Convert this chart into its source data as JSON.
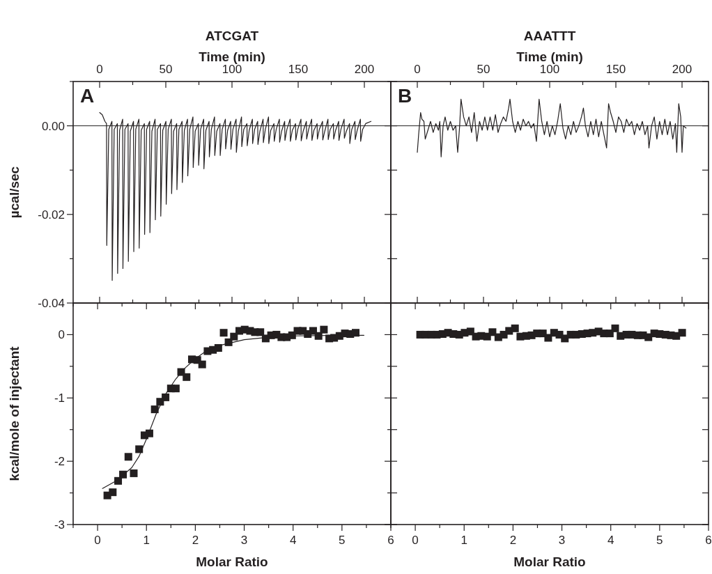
{
  "chart_data": [
    {
      "type": "line",
      "title": "ATCGAT",
      "xlabel": "Time (min)",
      "ylabel": "µcal/sec",
      "annotations": [
        "A"
      ],
      "xlim": [
        -20,
        220
      ],
      "xticks": [
        0,
        {
          "value": 25,
          "label": null
        },
        50,
        {
          "value": 75,
          "label": null
        },
        100,
        {
          "value": 125,
          "label": null
        },
        150,
        {
          "value": 175,
          "label": null
        },
        200
      ],
      "ylim": [
        -0.04,
        0.01
      ],
      "yticks": [
        {
          "value": -0.04,
          "label": "-0.04"
        },
        {
          "value": -0.03,
          "label": null
        },
        {
          "value": -0.02,
          "label": "-0.02"
        },
        {
          "value": -0.01,
          "label": null
        },
        {
          "value": 0,
          "label": "0.00"
        },
        {
          "value": 0.01,
          "label": null
        }
      ],
      "ref_lines": [
        {
          "axis": "y",
          "value": 0,
          "color": "#231f20"
        }
      ],
      "series": [
        {
          "color": "#231f20",
          "x": [
            0,
            2,
            4,
            5.2,
            5.4,
            6.9,
            9.3,
            9.5,
            11.0,
            13.4,
            13.6,
            15.1,
            17.4,
            17.6,
            19.1,
            21.5,
            21.7,
            23.2,
            25.6,
            25.8,
            27.3,
            29.7,
            29.9,
            31.4,
            33.8,
            34.0,
            35.5,
            37.8,
            38.0,
            39.5,
            41.9,
            42.1,
            43.6,
            46.0,
            46.2,
            47.7,
            50.1,
            50.3,
            51.8,
            54.2,
            54.4,
            55.9,
            58.2,
            58.4,
            59.9,
            62.3,
            62.5,
            64.0,
            66.4,
            66.6,
            68.1,
            70.5,
            70.7,
            72.2,
            74.6,
            74.8,
            76.3,
            78.6,
            78.8,
            80.3,
            82.7,
            82.9,
            84.4,
            86.8,
            87.0,
            88.5,
            90.9,
            91.1,
            92.6,
            95.0,
            95.2,
            96.7,
            99.0,
            99.2,
            100.7,
            103.1,
            103.3,
            104.8,
            107.2,
            107.4,
            108.9,
            111.3,
            111.5,
            113.0,
            115.4,
            115.6,
            117.1,
            119.4,
            119.6,
            121.1,
            123.5,
            123.7,
            125.2,
            127.6,
            127.8,
            129.3,
            131.7,
            131.9,
            133.4,
            135.8,
            136.0,
            137.5,
            139.8,
            140.0,
            141.5,
            143.9,
            144.1,
            145.6,
            148.0,
            148.2,
            149.7,
            152.1,
            152.3,
            153.8,
            156.2,
            156.4,
            157.9,
            160.2,
            160.4,
            161.9,
            164.3,
            164.5,
            166.0,
            168.4,
            168.6,
            170.1,
            172.5,
            172.7,
            174.2,
            176.6,
            176.8,
            178.3,
            180.6,
            180.8,
            182.3,
            184.7,
            184.9,
            186.4,
            188.8,
            189.0,
            190.5,
            192.9,
            193.1,
            194.6,
            197.0,
            197.2,
            198.7,
            201,
            205
          ],
          "values": [
            0.003,
            0.0025,
            0.001,
            0.0005,
            -0.027,
            -0.0008,
            0.001,
            -0.0349,
            -0.0008,
            0.0005,
            -0.0333,
            -0.001,
            0.0015,
            -0.0322,
            -0.0008,
            0.0005,
            -0.0306,
            -0.0012,
            0.001,
            -0.0284,
            -0.0008,
            0.0015,
            -0.0276,
            -0.001,
            0.0005,
            -0.0245,
            -0.0008,
            0.001,
            -0.0241,
            -0.0012,
            0.0015,
            -0.0212,
            -0.0008,
            0.0005,
            -0.0204,
            -0.001,
            0.001,
            -0.0177,
            -0.0008,
            0.0015,
            -0.0153,
            -0.0012,
            0.0005,
            -0.0144,
            -0.0008,
            0.001,
            -0.0128,
            -0.001,
            0.0015,
            -0.0113,
            -0.0008,
            0.002,
            -0.0094,
            -0.0012,
            0.0005,
            -0.0089,
            -0.0008,
            0.0015,
            -0.0097,
            -0.001,
            0.001,
            -0.007,
            -0.0008,
            0.002,
            -0.0067,
            -0.0012,
            0.0005,
            -0.0067,
            -0.0008,
            0.0015,
            -0.0052,
            -0.001,
            0.001,
            -0.0053,
            -0.0008,
            0.0015,
            -0.006,
            -0.0012,
            0.002,
            -0.0047,
            -0.0008,
            0.0005,
            -0.0045,
            -0.001,
            0.0015,
            -0.004,
            -0.0008,
            0.001,
            -0.0042,
            -0.0012,
            0.0015,
            -0.0038,
            -0.0008,
            0.002,
            -0.004,
            -0.001,
            0.0005,
            -0.0035,
            -0.0008,
            0.0015,
            -0.0037,
            -0.0012,
            0.001,
            -0.0033,
            -0.0008,
            0.0015,
            -0.0035,
            -0.001,
            0.0005,
            -0.0032,
            -0.0008,
            0.0015,
            -0.0034,
            -0.0012,
            0.001,
            -0.003,
            -0.0008,
            0.0015,
            -0.0033,
            -0.001,
            0.0005,
            -0.003,
            -0.0008,
            0.001,
            -0.0032,
            -0.0012,
            0.0015,
            -0.0031,
            -0.0008,
            0.0005,
            -0.003,
            -0.001,
            0.001,
            -0.0033,
            -0.0008,
            0.0015,
            -0.0028,
            -0.0012,
            0.0005,
            -0.004,
            -0.0008,
            0.001,
            -0.0031,
            -0.001,
            0.0015,
            -0.0035,
            -0.0008,
            0.0005,
            0.001
          ]
        }
      ]
    },
    {
      "type": "line",
      "title": "AAATTT",
      "xlabel": "Time (min)",
      "annotations": [
        "B"
      ],
      "tick_labels": "x",
      "xlim": [
        -20,
        220
      ],
      "xticks": [
        0,
        {
          "value": 25,
          "label": null
        },
        50,
        {
          "value": 75,
          "label": null
        },
        100,
        {
          "value": 125,
          "label": null
        },
        150,
        {
          "value": 175,
          "label": null
        },
        200
      ],
      "ylim": [
        -0.04,
        0.01
      ],
      "yticks": [
        {
          "value": -0.04,
          "label": null
        },
        {
          "value": -0.03,
          "label": null
        },
        {
          "value": -0.02,
          "label": null
        },
        {
          "value": -0.01,
          "label": null
        },
        {
          "value": 0,
          "label": null
        },
        {
          "value": 0.01,
          "label": null
        }
      ],
      "ref_lines": [
        {
          "axis": "y",
          "value": 0,
          "color": "#231f20"
        }
      ],
      "series": [
        {
          "color": "#231f20",
          "x": [
            0,
            1,
            2.5,
            3.5,
            5,
            6,
            8,
            10,
            12,
            14,
            16,
            17,
            18,
            19.5,
            21,
            23,
            25,
            27,
            29,
            30.5,
            32,
            33,
            35,
            37,
            39,
            41,
            43,
            45,
            47,
            49,
            51,
            53,
            55,
            57,
            59,
            61,
            63,
            65,
            67,
            69,
            70,
            72,
            74,
            76,
            78,
            80,
            82,
            84,
            86,
            88,
            90,
            92,
            94,
            96,
            98,
            100,
            102,
            104,
            106,
            108,
            110,
            112,
            114,
            116,
            118,
            120,
            122,
            124,
            125.5,
            127,
            129,
            131,
            133,
            135,
            137,
            139,
            141,
            143,
            144.5,
            146,
            148,
            150,
            152,
            154,
            156,
            158,
            160,
            162,
            164,
            166,
            168,
            170,
            172,
            174,
            175,
            177,
            179,
            181,
            183,
            185,
            187,
            189,
            191,
            193,
            195,
            196,
            197.5,
            199,
            200,
            201,
            203
          ],
          "values": [
            -0.006,
            -0.002,
            0.003,
            0.0015,
            0.001,
            -0.003,
            -0.001,
            0.001,
            -0.0015,
            0.0005,
            -0.001,
            0.001,
            -0.007,
            0.0,
            0.002,
            -0.001,
            0.001,
            -0.001,
            0.0,
            -0.006,
            0.0,
            0.006,
            0.002,
            0.0,
            0.002,
            -0.0015,
            0.003,
            -0.0035,
            0.001,
            -0.001,
            0.002,
            -0.001,
            0.002,
            -0.001,
            0.0025,
            -0.0015,
            0.0005,
            0.002,
            0.001,
            0.004,
            0.006,
            0.001,
            -0.0015,
            0.001,
            -0.001,
            0.0015,
            0.0,
            0.001,
            -0.0005,
            0.0005,
            -0.0035,
            0.006,
            0.001,
            -0.002,
            0.001,
            -0.0025,
            0.0,
            -0.002,
            0.001,
            0.005,
            -0.0005,
            -0.003,
            0.0,
            -0.002,
            0.001,
            -0.0015,
            0.0,
            0.002,
            0.004,
            0.0,
            -0.0025,
            0.001,
            -0.002,
            0.0015,
            -0.0025,
            0.001,
            -0.002,
            -0.005,
            0.005,
            0.003,
            0.001,
            -0.0015,
            0.002,
            0.001,
            -0.0015,
            0.0015,
            0.0,
            0.001,
            -0.002,
            0.0005,
            -0.001,
            0.001,
            -0.002,
            0.0,
            -0.005,
            0.0,
            0.002,
            -0.003,
            0.001,
            -0.002,
            0.0015,
            -0.002,
            0.001,
            -0.003,
            0.0005,
            -0.006,
            0.005,
            0.002,
            -0.006,
            0.0,
            -0.0005
          ]
        }
      ]
    },
    {
      "type": "scatter",
      "xlabel": "Molar Ratio",
      "ylabel": "kcal/mole of injectant",
      "xlim": [
        -0.5,
        6
      ],
      "xticks": [
        {
          "value": -0.5,
          "label": null
        },
        0,
        {
          "value": 0.5,
          "label": null
        },
        1,
        {
          "value": 1.5,
          "label": null
        },
        2,
        {
          "value": 2.5,
          "label": null
        },
        3,
        {
          "value": 3.5,
          "label": null
        },
        4,
        {
          "value": 4.5,
          "label": null
        },
        5,
        {
          "value": 5.5,
          "label": null
        },
        6
      ],
      "ylim": [
        -3,
        0.5
      ],
      "yticks": [
        -3,
        {
          "value": -2.5,
          "label": null
        },
        -2,
        {
          "value": -1.5,
          "label": null
        },
        -1,
        {
          "value": -0.5,
          "label": null
        },
        0
      ],
      "series": [
        {
          "marker": "square",
          "color": "#231f20",
          "x": [
            0.2,
            0.31,
            0.42,
            0.52,
            0.63,
            0.74,
            0.85,
            0.96,
            1.06,
            1.17,
            1.28,
            1.39,
            1.5,
            1.6,
            1.71,
            1.82,
            1.93,
            2.04,
            2.14,
            2.25,
            2.36,
            2.47,
            2.58,
            2.68,
            2.79,
            2.9,
            3.01,
            3.12,
            3.22,
            3.33,
            3.44,
            3.55,
            3.66,
            3.76,
            3.87,
            3.98,
            4.09,
            4.2,
            4.3,
            4.41,
            4.52,
            4.63,
            4.74,
            4.84,
            4.95,
            5.06,
            5.17,
            5.28
          ],
          "values": [
            -2.54,
            -2.49,
            -2.31,
            -2.21,
            -1.93,
            -2.19,
            -1.81,
            -1.59,
            -1.56,
            -1.18,
            -1.06,
            -0.99,
            -0.85,
            -0.85,
            -0.59,
            -0.67,
            -0.39,
            -0.4,
            -0.47,
            -0.26,
            -0.24,
            -0.21,
            0.03,
            -0.12,
            -0.03,
            0.06,
            0.08,
            0.06,
            0.04,
            0.04,
            -0.06,
            -0.01,
            0,
            -0.04,
            -0.04,
            -0.01,
            0.06,
            0.06,
            0.01,
            0.06,
            -0.02,
            0.08,
            -0.06,
            -0.05,
            -0.02,
            0.02,
            0.01,
            0.03
          ]
        },
        {
          "type": "line",
          "marker": "none",
          "color": "#231f20",
          "x": [
            0.1,
            0.4,
            0.7,
            0.85,
            1.0,
            1.2,
            1.4,
            1.6,
            1.8,
            2.0,
            2.2,
            2.5,
            3.0,
            3.5,
            4.0,
            5.0,
            5.45
          ],
          "values": [
            -2.43,
            -2.3,
            -2.1,
            -1.92,
            -1.65,
            -1.25,
            -0.93,
            -0.7,
            -0.52,
            -0.38,
            -0.27,
            -0.17,
            -0.08,
            -0.04,
            -0.02,
            -0.01,
            -0.01
          ]
        }
      ]
    },
    {
      "type": "scatter",
      "xlabel": "Molar Ratio",
      "tick_labels": "x",
      "xlim": [
        -0.5,
        6
      ],
      "xticks": [
        {
          "value": -0.5,
          "label": null
        },
        0,
        {
          "value": 0.5,
          "label": null
        },
        1,
        {
          "value": 1.5,
          "label": null
        },
        2,
        {
          "value": 2.5,
          "label": null
        },
        3,
        {
          "value": 3.5,
          "label": null
        },
        4,
        {
          "value": 4.5,
          "label": null
        },
        5,
        {
          "value": 5.5,
          "label": null
        },
        6
      ],
      "ylim": [
        -3,
        0.5
      ],
      "yticks": [
        {
          "value": -3,
          "label": null
        },
        {
          "value": -2.5,
          "label": null
        },
        {
          "value": -2,
          "label": null
        },
        {
          "value": -1.5,
          "label": null
        },
        {
          "value": -1,
          "label": null
        },
        {
          "value": -0.5,
          "label": null
        },
        {
          "value": 0,
          "label": null
        }
      ],
      "series": [
        {
          "marker": "square",
          "color": "#231f20",
          "x": [
            0.1,
            0.21,
            0.33,
            0.44,
            0.56,
            0.67,
            0.78,
            0.9,
            1.01,
            1.13,
            1.24,
            1.35,
            1.47,
            1.58,
            1.7,
            1.81,
            1.92,
            2.04,
            2.15,
            2.27,
            2.38,
            2.49,
            2.61,
            2.72,
            2.84,
            2.95,
            3.06,
            3.18,
            3.29,
            3.41,
            3.52,
            3.63,
            3.75,
            3.86,
            3.98,
            4.09,
            4.2,
            4.32,
            4.43,
            4.55,
            4.66,
            4.77,
            4.89,
            5.0,
            5.12,
            5.23,
            5.34,
            5.46
          ],
          "values": [
            0.0,
            0.0,
            0.0,
            0.0,
            0.01,
            0.03,
            0.01,
            0.0,
            0.03,
            0.05,
            -0.03,
            -0.02,
            -0.03,
            0.04,
            -0.04,
            0.0,
            0.06,
            0.1,
            -0.03,
            -0.02,
            -0.01,
            0.02,
            0.02,
            -0.05,
            0.03,
            0.0,
            -0.06,
            0.0,
            0.0,
            0.01,
            0.02,
            0.03,
            0.05,
            0.02,
            0.02,
            0.1,
            -0.02,
            0.0,
            0.0,
            -0.01,
            -0.01,
            -0.04,
            0.02,
            0.01,
            0.0,
            -0.01,
            -0.02,
            0.03
          ]
        }
      ]
    }
  ]
}
